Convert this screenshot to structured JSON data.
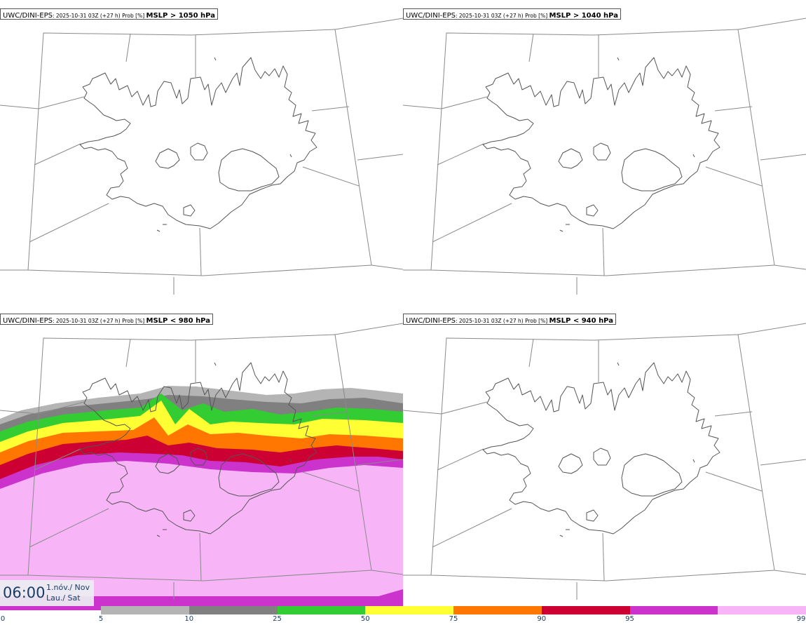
{
  "panels": [
    {
      "model": "UWC/DINI-EPS",
      "meta": ": 2025-10-31 03Z (+27 h) Prob [%] ",
      "param": "MSLP > 1050 hPa",
      "probability_field": "none"
    },
    {
      "model": "UWC/DINI-EPS",
      "meta": ": 2025-10-31 03Z (+27 h) Prob [%] ",
      "param": "MSLP > 1040 hPa",
      "probability_field": "none"
    },
    {
      "model": "UWC/DINI-EPS",
      "meta": ": 2025-10-31 03Z (+27 h) Prob [%] ",
      "param": "MSLP < 980 hPa",
      "probability_field": "banded"
    },
    {
      "model": "UWC/DINI-EPS",
      "meta": ": 2025-10-31 03Z (+27 h) Prob [%] ",
      "param": "MSLP < 940 hPa",
      "probability_field": "none"
    }
  ],
  "valid_time": {
    "time": "06:00",
    "date_line1": "1.nóv./ Nov",
    "date_line2": "Lau./ Sat"
  },
  "legend": {
    "ticks": [
      "0",
      "5",
      "10",
      "25",
      "50",
      "75",
      "90",
      "95",
      "99"
    ],
    "colors": [
      "#b4b4b4",
      "#808080",
      "#33cc33",
      "#ffff33",
      "#ff7700",
      "#cc0033",
      "#cc33cc",
      "#f7b5f7"
    ]
  },
  "map": {
    "region": "Iceland",
    "coastline_color": "#555555",
    "grid_color": "#8a8a8a"
  }
}
